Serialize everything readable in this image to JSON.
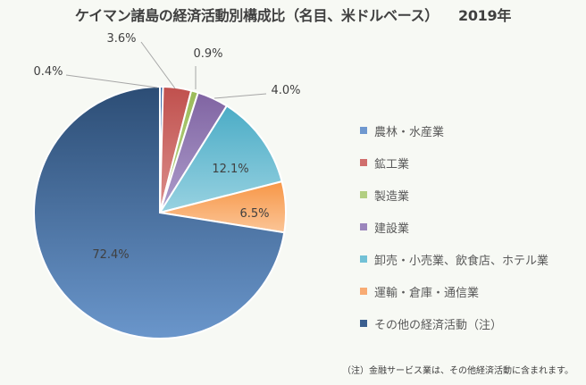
{
  "title": "ケイマン諸島の経済活動別構成比（名目、米ドルベース）",
  "year": "2019年",
  "chart_data": {
    "type": "pie",
    "title": "ケイマン諸島の経済活動別構成比（名目、米ドルベース） 2019年",
    "categories": [
      "農林・水産業",
      "鉱工業",
      "製造業",
      "建設業",
      "卸売・小売業、飲食店、ホテル業",
      "運輸・倉庫・通信業",
      "その他の経済活動（注）"
    ],
    "values": [
      0.4,
      3.6,
      0.9,
      4.0,
      12.1,
      6.5,
      72.4
    ],
    "labels": [
      "0.4%",
      "3.6%",
      "0.9%",
      "4.0%",
      "12.1%",
      "6.5%",
      "72.4%"
    ],
    "colors": [
      "#4f81bd",
      "#c0504d",
      "#9bbb59",
      "#8064a2",
      "#4bacc6",
      "#f79646",
      "#2c4d75"
    ],
    "legend_position": "right",
    "start_angle_deg": 0,
    "direction": "clockwise",
    "note": "（注）金融サービス業は、その他経済活動に含まれます。"
  },
  "legend": {
    "items": [
      {
        "label": "農林・水産業",
        "color": "#6f98cf"
      },
      {
        "label": "鉱工業",
        "color": "#d06e6c"
      },
      {
        "label": "製造業",
        "color": "#b2cf82"
      },
      {
        "label": "建設業",
        "color": "#9b86bc"
      },
      {
        "label": "卸売・小売業、飲食店、ホテル業",
        "color": "#72c1d6"
      },
      {
        "label": "運輸・倉庫・通信業",
        "color": "#f8ab73"
      },
      {
        "label": "その他の経済活動（注）",
        "color": "#3b5f8f"
      }
    ]
  },
  "note": "（注）金融サービス業は、その他経済活動に含まれます。"
}
